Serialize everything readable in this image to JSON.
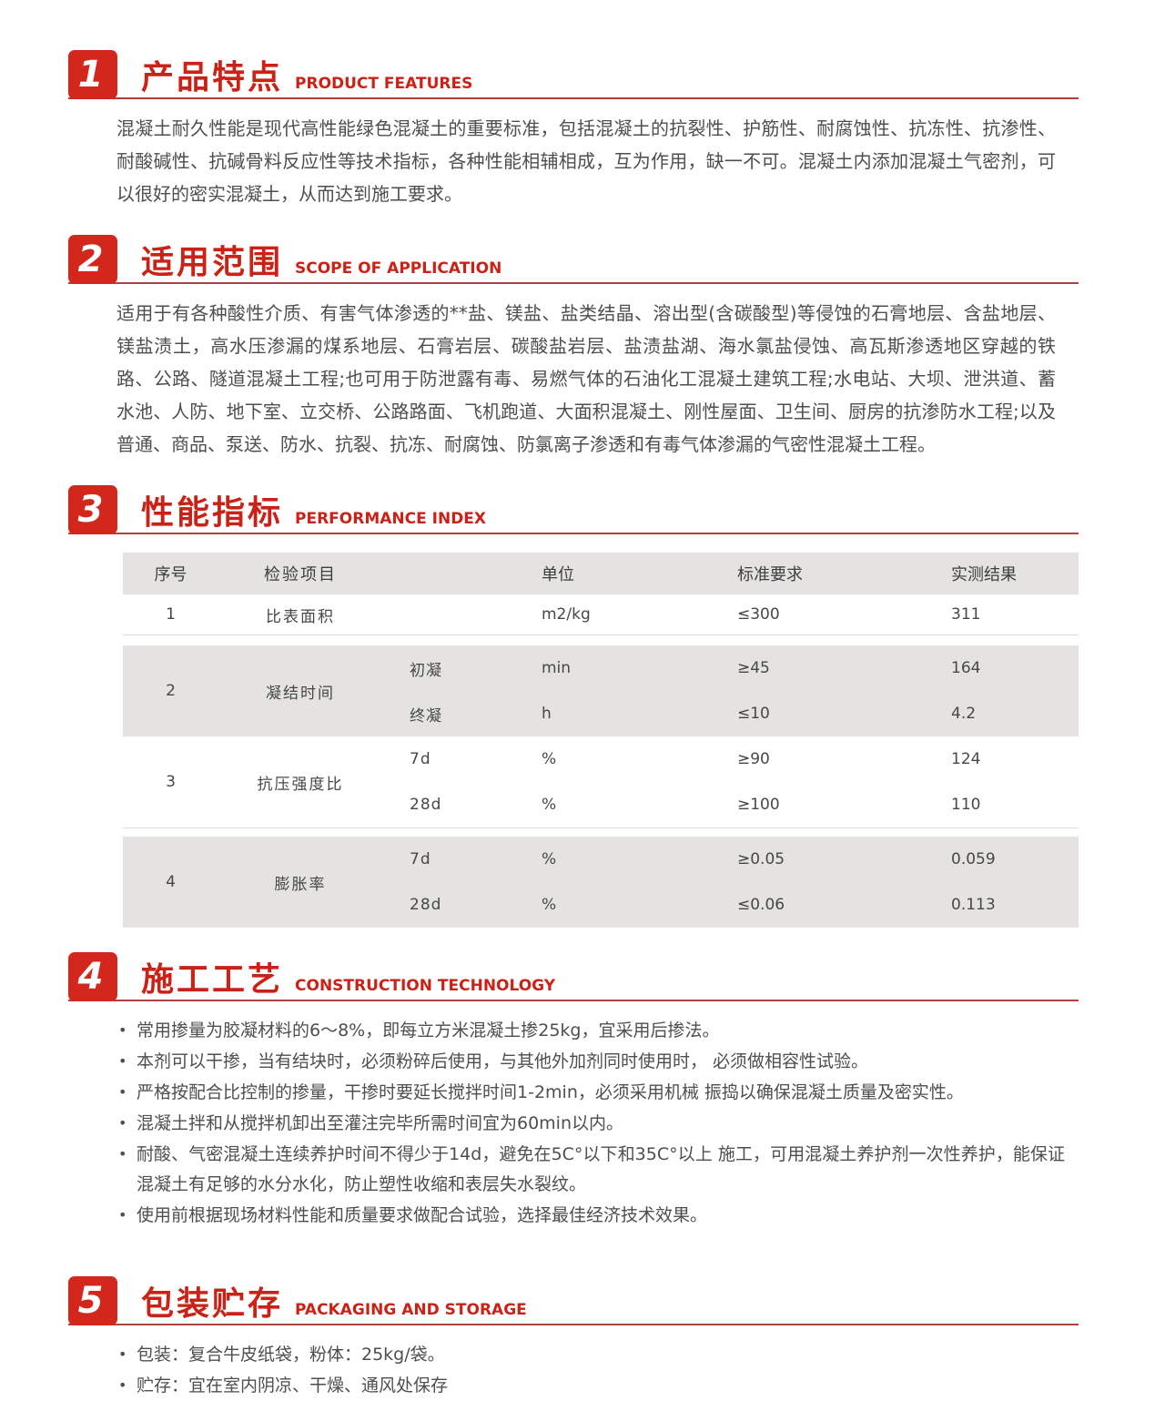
{
  "accent_color": "#cb2217",
  "badge_color": "#d3271b",
  "table_shade_color": "#e4e3e1",
  "sections": [
    {
      "number": "1",
      "title_zh": "产品特点",
      "title_en": "PRODUCT FEATURES"
    },
    {
      "number": "2",
      "title_zh": "适用范围",
      "title_en": "SCOPE OF APPLICATION"
    },
    {
      "number": "3",
      "title_zh": "性能指标",
      "title_en": "PERFORMANCE INDEX"
    },
    {
      "number": "4",
      "title_zh": "施工工艺",
      "title_en": "CONSTRUCTION TECHNOLOGY"
    },
    {
      "number": "5",
      "title_zh": "包装贮存",
      "title_en": "PACKAGING AND STORAGE"
    }
  ],
  "section1": {
    "paragraph": "混凝土耐久性能是现代高性能绿色混凝土的重要标准，包括混凝土的抗裂性、护筋性、耐腐蚀性、抗冻性、抗渗性、耐酸碱性、抗碱骨料反应性等技术指标，各种性能相辅相成，互为作用，缺一不可。混凝土内添加混凝土气密剂，可以很好的密实混凝土，从而达到施工要求。"
  },
  "section2": {
    "paragraph": "适用于有各种酸性介质、有害气体渗透的**盐、镁盐、盐类结晶、溶出型(含碳酸型)等侵蚀的石膏地层、含盐地层、镁盐渍土，高水压渗漏的煤系地层、石膏岩层、碳酸盐岩层、盐渍盐湖、海水氯盐侵蚀、高瓦斯渗透地区穿越的铁路、公路、隧道混凝土工程;也可用于防泄露有毒、易燃气体的石油化工混凝土建筑工程;水电站、大坝、泄洪道、蓄水池、人防、地下室、立交桥、公路路面、飞机跑道、大面积混凝土、刚性屋面、卫生间、厨房的抗渗防水工程;以及普通、商品、泵送、防水、抗裂、抗冻、耐腐蚀、防氯离子渗透和有毒气体渗漏的气密性混凝土工程。"
  },
  "section3": {
    "table": {
      "col_no": "序号",
      "col_item": "检验项目",
      "col_unit": "单位",
      "col_standard": "标准要求",
      "col_result": "实测结果",
      "rows": [
        {
          "no": "1",
          "item": "比表面积",
          "sub": [
            {
              "name": "",
              "unit": "m2/kg",
              "standard": "≤300",
              "result": "311"
            }
          ]
        },
        {
          "no": "2",
          "item": "凝结时间",
          "sub": [
            {
              "name": "初凝",
              "unit": "min",
              "standard": "≥45",
              "result": "164"
            },
            {
              "name": "终凝",
              "unit": "h",
              "standard": "≤10",
              "result": "4.2"
            }
          ]
        },
        {
          "no": "3",
          "item": "抗压强度比",
          "sub": [
            {
              "name": "7d",
              "unit": "%",
              "standard": "≥90",
              "result": "124"
            },
            {
              "name": "28d",
              "unit": "%",
              "standard": "≥100",
              "result": "110"
            }
          ]
        },
        {
          "no": "4",
          "item": "膨胀率",
          "sub": [
            {
              "name": "7d",
              "unit": "%",
              "standard": "≥0.05",
              "result": "0.059"
            },
            {
              "name": "28d",
              "unit": "%",
              "standard": "≤0.06",
              "result": "0.113"
            }
          ]
        }
      ]
    }
  },
  "section4": {
    "bullets": [
      "常用掺量为胶凝材料的6～8%，即每立方米混凝土掺25kg，宜采用后掺法。",
      "本剂可以干掺，当有结块时，必须粉碎后使用，与其他外加剂同时使用时， 必须做相容性试验。",
      "严格按配合比控制的掺量，干掺时要延长搅拌时间1-2min，必须采用机械 振捣以确保混凝土质量及密实性。",
      "混凝土拌和从搅拌机卸出至灌注完毕所需时间宜为60min以内。",
      "耐酸、气密混凝土连续养护时间不得少于14d，避免在5C°以下和35C°以上 施工，可用混凝土养护剂一次性养护，能保证混凝土有足够的水分水化，防止塑性收缩和表层失水裂纹。",
      "使用前根据现场材料性能和质量要求做配合试验，选择最佳经济技术效果。"
    ]
  },
  "section5": {
    "bullets": [
      "包装：复合牛皮纸袋，粉体：25kg/袋。",
      "贮存：宜在室内阴凉、干燥、通风处保存"
    ]
  }
}
